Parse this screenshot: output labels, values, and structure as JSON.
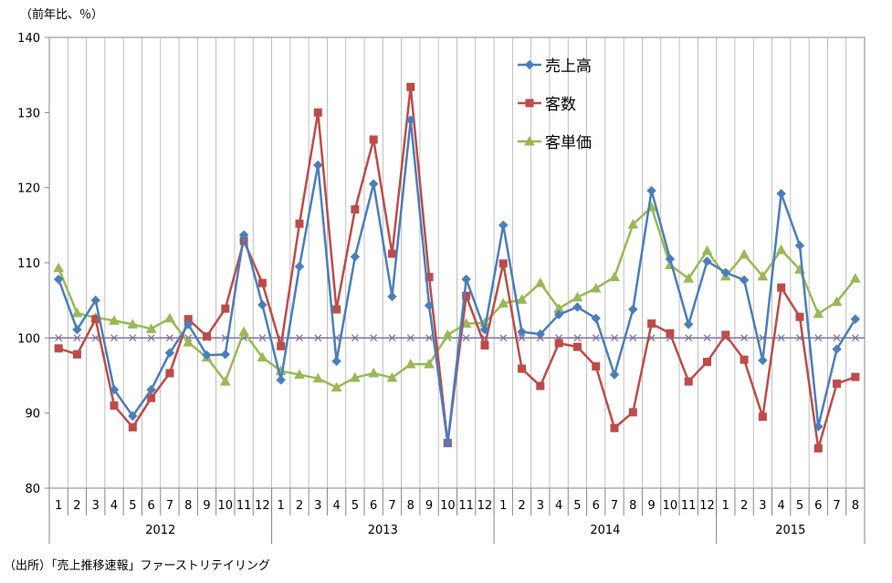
{
  "unit_label": "（前年比、％）",
  "source_note": "（出所）「売上推移速報」ファーストリテイリング",
  "chart_data": {
    "type": "line",
    "ylim": [
      80,
      140
    ],
    "yticks": [
      80,
      90,
      100,
      110,
      120,
      130,
      140
    ],
    "x_labels": [
      "1",
      "2",
      "3",
      "4",
      "5",
      "6",
      "7",
      "8",
      "9",
      "10",
      "11",
      "12",
      "1",
      "2",
      "3",
      "4",
      "5",
      "6",
      "7",
      "8",
      "9",
      "10",
      "11",
      "12",
      "1",
      "2",
      "3",
      "4",
      "5",
      "6",
      "7",
      "8",
      "9",
      "10",
      "11",
      "12",
      "1",
      "2",
      "3",
      "4",
      "5",
      "6",
      "7",
      "8"
    ],
    "years": [
      {
        "label": "2012",
        "count": 12
      },
      {
        "label": "2013",
        "count": 12
      },
      {
        "label": "2014",
        "count": 12
      },
      {
        "label": "2015",
        "count": 8
      }
    ],
    "grid": "vertical",
    "legend_position": "top-right-inside",
    "reference_line": {
      "value": 100,
      "color": "#7b6fa0"
    },
    "series": [
      {
        "name": "売上高",
        "color": "#4a7ebb",
        "marker": "diamond",
        "values": [
          107.8,
          101.1,
          105.0,
          93.1,
          89.6,
          93.1,
          98.0,
          101.8,
          97.7,
          97.8,
          113.7,
          104.4,
          94.4,
          109.5,
          123.0,
          96.9,
          110.8,
          120.5,
          105.5,
          129.0,
          104.3,
          86.0,
          107.8,
          101.1,
          115.0,
          100.8,
          100.5,
          103.1,
          104.1,
          102.6,
          95.1,
          103.8,
          119.6,
          110.5,
          101.8,
          110.2,
          108.7,
          107.7,
          97.0,
          119.2,
          112.3,
          88.2,
          98.5,
          102.5
        ]
      },
      {
        "name": "客数",
        "color": "#be4b48",
        "marker": "square",
        "values": [
          98.6,
          97.8,
          102.5,
          91.0,
          88.1,
          92.0,
          95.3,
          102.5,
          100.2,
          103.9,
          112.9,
          107.3,
          98.9,
          115.2,
          130.0,
          103.8,
          117.1,
          126.4,
          111.2,
          133.4,
          108.1,
          86.0,
          105.6,
          99.0,
          109.9,
          95.9,
          93.6,
          99.3,
          98.8,
          96.2,
          88.0,
          90.1,
          101.9,
          100.6,
          94.2,
          96.8,
          100.4,
          97.1,
          89.5,
          106.7,
          102.8,
          85.3,
          93.9,
          94.8
        ]
      },
      {
        "name": "客単価",
        "color": "#98b954",
        "marker": "triangle",
        "values": [
          109.3,
          103.3,
          102.7,
          102.3,
          101.8,
          101.2,
          102.6,
          99.4,
          97.4,
          94.2,
          100.8,
          97.4,
          95.6,
          95.1,
          94.6,
          93.4,
          94.7,
          95.3,
          94.7,
          96.5,
          96.5,
          100.4,
          101.9,
          102.0,
          104.6,
          105.1,
          107.3,
          103.9,
          105.4,
          106.6,
          108.1,
          115.1,
          117.4,
          109.7,
          107.9,
          111.6,
          108.2,
          111.1,
          108.2,
          111.7,
          109.1,
          103.2,
          104.8,
          107.9
        ]
      }
    ]
  }
}
